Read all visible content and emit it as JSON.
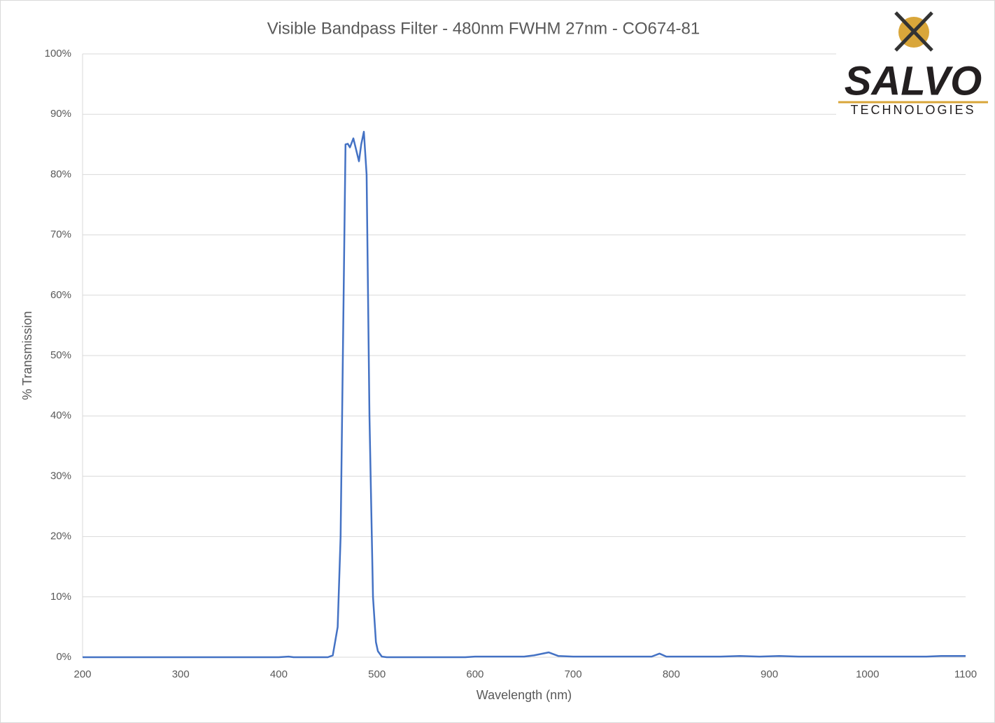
{
  "chart_data": {
    "type": "line",
    "title": "Visible Bandpass Filter - 480nm FWHM 27nm - CO674-81",
    "x_label": "Wavelength (nm)",
    "y_label": "% Transmission",
    "logo": {
      "name": "SALVO",
      "subtitle": "TECHNOLOGIES"
    },
    "color": "#4472c4",
    "grid": true,
    "xlim": [
      200,
      1100
    ],
    "xticks": [
      200,
      300,
      400,
      500,
      600,
      700,
      800,
      900,
      1000,
      1100
    ],
    "ylim": [
      0,
      100
    ],
    "yticks": [
      {
        "value": 0,
        "label": "0%"
      },
      {
        "value": 10,
        "label": "10%"
      },
      {
        "value": 20,
        "label": "20%"
      },
      {
        "value": 30,
        "label": "30%"
      },
      {
        "value": 40,
        "label": "40%"
      },
      {
        "value": 50,
        "label": "50%"
      },
      {
        "value": 60,
        "label": "60%"
      },
      {
        "value": 70,
        "label": "70%"
      },
      {
        "value": 80,
        "label": "80%"
      },
      {
        "value": 90,
        "label": "90%"
      },
      {
        "value": 100,
        "label": "100%"
      }
    ],
    "x": [
      200,
      300,
      400,
      410,
      415,
      450,
      455,
      460,
      463,
      465.3,
      468,
      470.3,
      472.5,
      476,
      479,
      481.7,
      484,
      486.7,
      489.5,
      492.4,
      496,
      499,
      501,
      505,
      510,
      590,
      600,
      650,
      660,
      675,
      685,
      700,
      720,
      780,
      788,
      795,
      850,
      870,
      890,
      910,
      930,
      1000,
      1060,
      1075,
      1100
    ],
    "values": [
      0,
      0,
      0,
      0.1,
      0,
      0,
      0.3,
      5,
      20,
      50,
      85,
      85.1,
      84.5,
      86,
      84,
      82.2,
      85,
      87.1,
      80,
      40,
      10,
      2.5,
      1,
      0.1,
      0,
      0,
      0.1,
      0.1,
      0.3,
      0.8,
      0.2,
      0.1,
      0.1,
      0.1,
      0.6,
      0.1,
      0.1,
      0.2,
      0.1,
      0.2,
      0.1,
      0.1,
      0.1,
      0.2,
      0.2
    ]
  }
}
